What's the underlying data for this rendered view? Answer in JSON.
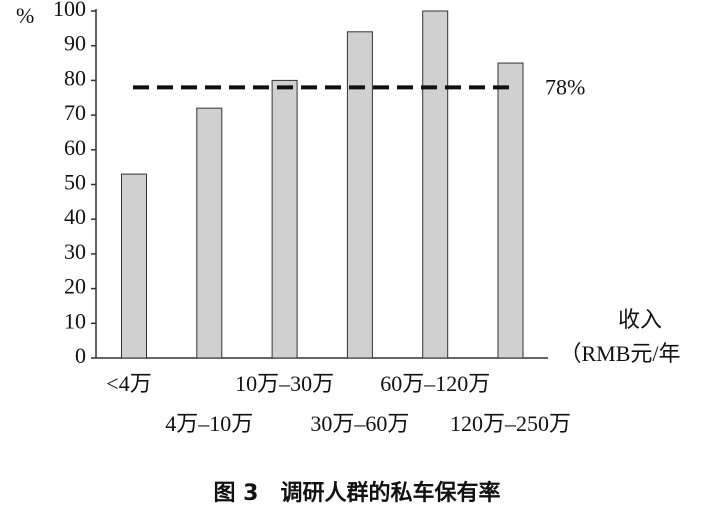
{
  "chart_data": {
    "type": "bar",
    "title": "图 3　调研人群的私车保有率",
    "ylabel": "%",
    "xlabel": [
      "收入",
      "（RMB元/年"
    ],
    "categories": [
      "<4万",
      "4万–10万",
      "10万–30万",
      "30万–60万",
      "60万–120万",
      "120万–250万"
    ],
    "values": [
      53,
      72,
      80,
      94,
      100,
      85
    ],
    "color": "#d0d0d0",
    "ylim": [
      0,
      100
    ],
    "yticks": [
      0,
      10,
      20,
      30,
      40,
      50,
      60,
      70,
      80,
      90,
      100
    ],
    "reference_line": {
      "value": 78,
      "label": "78%"
    }
  }
}
